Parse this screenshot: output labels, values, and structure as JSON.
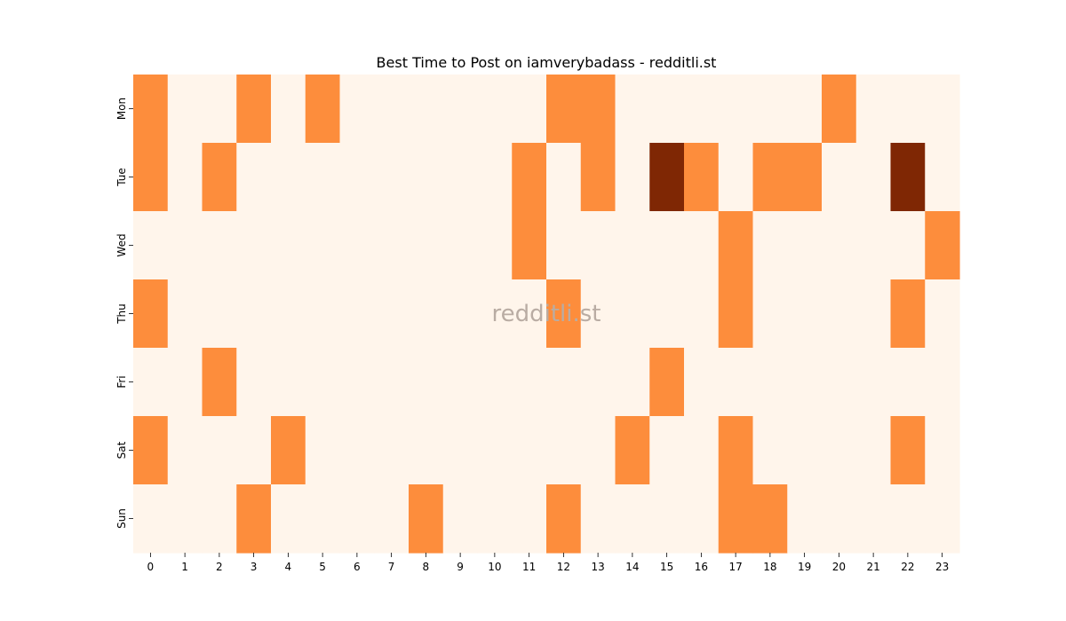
{
  "chart_data": {
    "type": "heatmap",
    "title": "Best Time to Post on iamverybadass - redditli.st",
    "watermark": "redditli.st",
    "x_labels": [
      "0",
      "1",
      "2",
      "3",
      "4",
      "5",
      "6",
      "7",
      "8",
      "9",
      "10",
      "11",
      "12",
      "13",
      "14",
      "15",
      "16",
      "17",
      "18",
      "19",
      "20",
      "21",
      "22",
      "23"
    ],
    "y_labels": [
      "Mon",
      "Tue",
      "Wed",
      "Thu",
      "Fri",
      "Sat",
      "Sun"
    ],
    "values": [
      [
        1,
        0,
        0,
        1,
        0,
        1,
        0,
        0,
        0,
        0,
        0,
        0,
        1,
        1,
        0,
        0,
        0,
        0,
        0,
        0,
        1,
        0,
        0,
        0
      ],
      [
        1,
        0,
        1,
        0,
        0,
        0,
        0,
        0,
        0,
        0,
        0,
        1,
        0,
        1,
        0,
        2,
        1,
        0,
        1,
        1,
        0,
        0,
        2,
        0
      ],
      [
        0,
        0,
        0,
        0,
        0,
        0,
        0,
        0,
        0,
        0,
        0,
        1,
        0,
        0,
        0,
        0,
        0,
        1,
        0,
        0,
        0,
        0,
        0,
        1
      ],
      [
        1,
        0,
        0,
        0,
        0,
        0,
        0,
        0,
        0,
        0,
        0,
        0,
        1,
        0,
        0,
        0,
        0,
        1,
        0,
        0,
        0,
        0,
        1,
        0
      ],
      [
        0,
        0,
        1,
        0,
        0,
        0,
        0,
        0,
        0,
        0,
        0,
        0,
        0,
        0,
        0,
        1,
        0,
        0,
        0,
        0,
        0,
        0,
        0,
        0
      ],
      [
        1,
        0,
        0,
        0,
        1,
        0,
        0,
        0,
        0,
        0,
        0,
        0,
        0,
        0,
        1,
        0,
        0,
        1,
        0,
        0,
        0,
        0,
        1,
        0
      ],
      [
        0,
        0,
        0,
        1,
        0,
        0,
        0,
        0,
        1,
        0,
        0,
        0,
        1,
        0,
        0,
        0,
        0,
        1,
        1,
        0,
        0,
        0,
        0,
        0
      ]
    ],
    "colors": [
      "#fff5eb",
      "#fd8d3c",
      "#7f2704"
    ],
    "colorbar": false,
    "grid": false
  }
}
